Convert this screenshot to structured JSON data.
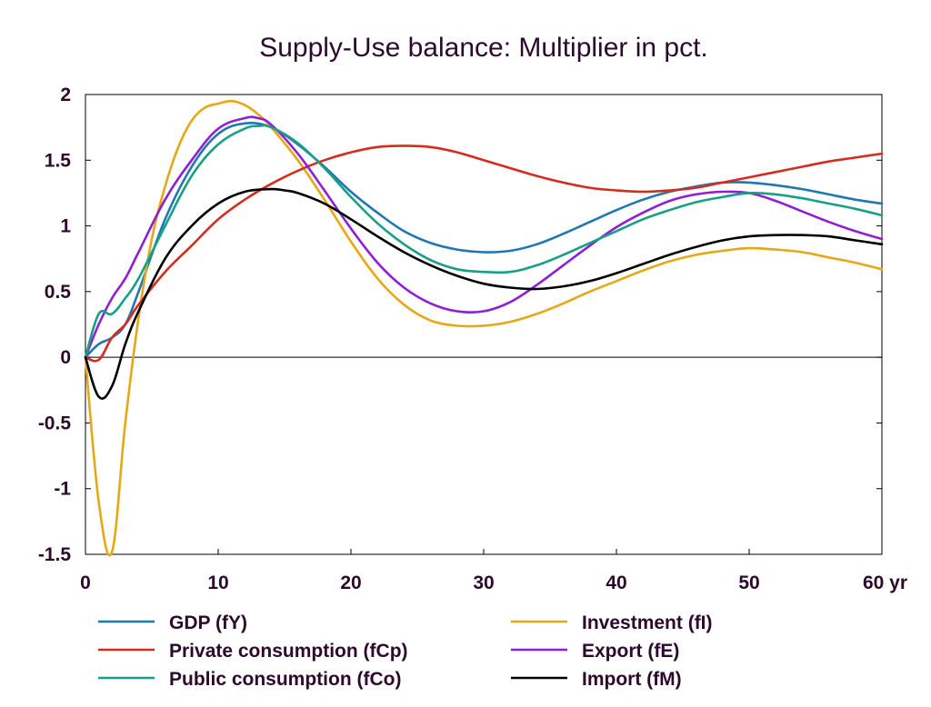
{
  "chart_data": {
    "type": "line",
    "title": "Supply-Use balance: Multiplier in pct.",
    "xlabel": "",
    "ylabel": "",
    "x_unit_label": "yr",
    "xlim": [
      0,
      60
    ],
    "ylim": [
      -1.5,
      2
    ],
    "x_ticks": [
      0,
      10,
      20,
      30,
      40,
      50,
      60
    ],
    "x_tick_labels": [
      "0",
      "10",
      "20",
      "30",
      "40",
      "50",
      "60 yr"
    ],
    "y_ticks": [
      2,
      1.5,
      1,
      0.5,
      0,
      -0.5,
      -1,
      -1.5
    ],
    "y_tick_labels": [
      "2",
      "1.5",
      "1",
      "0.5",
      "0",
      "-0.5",
      "-1",
      "-1.5"
    ],
    "grid": false,
    "zero_line": true,
    "legend_position": "bottom",
    "series": [
      {
        "name": "GDP (fY)",
        "color": "#1f77b4",
        "x": [
          0,
          1,
          2,
          3,
          4,
          6,
          8,
          10,
          12,
          14,
          16,
          18,
          20,
          22,
          24,
          26,
          28,
          30,
          32,
          34,
          36,
          38,
          40,
          42,
          44,
          46,
          48,
          50,
          52,
          54,
          56,
          58,
          60
        ],
        "y": [
          0,
          0.1,
          0.15,
          0.25,
          0.5,
          1.05,
          1.45,
          1.7,
          1.78,
          1.75,
          1.62,
          1.45,
          1.26,
          1.1,
          0.96,
          0.87,
          0.82,
          0.8,
          0.81,
          0.86,
          0.94,
          1.03,
          1.12,
          1.2,
          1.26,
          1.3,
          1.33,
          1.33,
          1.31,
          1.28,
          1.24,
          1.2,
          1.17
        ]
      },
      {
        "name": "Investment (fI)",
        "color": "#e6a817",
        "x": [
          0,
          1,
          2,
          3,
          4,
          5,
          6,
          7,
          8,
          9,
          10,
          11,
          12,
          13,
          14,
          16,
          18,
          20,
          22,
          24,
          26,
          28,
          30,
          32,
          34,
          36,
          38,
          40,
          42,
          44,
          46,
          48,
          50,
          52,
          54,
          56,
          58,
          60
        ],
        "y": [
          0,
          -1.1,
          -1.48,
          -0.5,
          0.3,
          0.9,
          1.3,
          1.6,
          1.8,
          1.9,
          1.93,
          1.95,
          1.92,
          1.85,
          1.75,
          1.5,
          1.2,
          0.88,
          0.6,
          0.4,
          0.28,
          0.24,
          0.24,
          0.27,
          0.33,
          0.41,
          0.5,
          0.58,
          0.66,
          0.73,
          0.78,
          0.81,
          0.83,
          0.82,
          0.8,
          0.76,
          0.72,
          0.67
        ]
      },
      {
        "name": "Private consumption (fCp)",
        "color": "#d62b1f",
        "x": [
          0,
          1,
          2,
          3,
          4,
          6,
          8,
          10,
          12,
          14,
          16,
          18,
          20,
          22,
          24,
          26,
          28,
          30,
          32,
          34,
          36,
          38,
          40,
          42,
          44,
          46,
          48,
          50,
          52,
          54,
          56,
          58,
          60
        ],
        "y": [
          0,
          -0.02,
          0.15,
          0.25,
          0.4,
          0.65,
          0.85,
          1.05,
          1.2,
          1.32,
          1.42,
          1.5,
          1.56,
          1.6,
          1.61,
          1.6,
          1.56,
          1.5,
          1.44,
          1.38,
          1.33,
          1.29,
          1.27,
          1.26,
          1.27,
          1.29,
          1.33,
          1.37,
          1.41,
          1.45,
          1.49,
          1.52,
          1.55
        ]
      },
      {
        "name": "Export (fE)",
        "color": "#8e1fd6",
        "x": [
          0,
          1,
          2,
          3,
          4,
          6,
          8,
          10,
          12,
          13,
          14,
          16,
          18,
          20,
          22,
          24,
          26,
          28,
          30,
          32,
          34,
          36,
          38,
          40,
          42,
          44,
          46,
          48,
          50,
          52,
          54,
          56,
          58,
          60
        ],
        "y": [
          0,
          0.25,
          0.45,
          0.6,
          0.8,
          1.2,
          1.5,
          1.74,
          1.82,
          1.82,
          1.77,
          1.55,
          1.27,
          0.98,
          0.72,
          0.53,
          0.41,
          0.35,
          0.35,
          0.42,
          0.55,
          0.7,
          0.85,
          0.99,
          1.1,
          1.19,
          1.24,
          1.26,
          1.25,
          1.19,
          1.11,
          1.03,
          0.96,
          0.9
        ]
      },
      {
        "name": "Public consumption (fCo)",
        "color": "#17a085",
        "x": [
          0,
          1,
          2,
          3,
          4,
          6,
          8,
          10,
          12,
          13,
          14,
          16,
          18,
          20,
          22,
          24,
          26,
          28,
          30,
          32,
          34,
          36,
          38,
          40,
          42,
          44,
          46,
          48,
          50,
          52,
          54,
          56,
          58,
          60
        ],
        "y": [
          0,
          0.33,
          0.33,
          0.45,
          0.6,
          1.0,
          1.38,
          1.62,
          1.74,
          1.76,
          1.75,
          1.63,
          1.44,
          1.22,
          1.02,
          0.86,
          0.74,
          0.67,
          0.65,
          0.65,
          0.7,
          0.78,
          0.87,
          0.96,
          1.05,
          1.12,
          1.18,
          1.22,
          1.25,
          1.24,
          1.21,
          1.17,
          1.13,
          1.08
        ]
      },
      {
        "name": "Import (fM)",
        "color": "#000000",
        "x": [
          0,
          1,
          2,
          3,
          4,
          6,
          8,
          10,
          12,
          14,
          15,
          16,
          18,
          20,
          22,
          24,
          26,
          28,
          30,
          32,
          34,
          36,
          38,
          40,
          42,
          44,
          46,
          48,
          50,
          52,
          54,
          56,
          58,
          60
        ],
        "y": [
          0,
          -0.3,
          -0.22,
          0.1,
          0.35,
          0.75,
          1.0,
          1.17,
          1.26,
          1.28,
          1.27,
          1.25,
          1.17,
          1.05,
          0.92,
          0.8,
          0.7,
          0.62,
          0.56,
          0.53,
          0.52,
          0.54,
          0.58,
          0.64,
          0.71,
          0.78,
          0.84,
          0.89,
          0.92,
          0.93,
          0.93,
          0.92,
          0.89,
          0.86
        ]
      }
    ]
  },
  "legend": {
    "left": [
      {
        "label": "GDP (fY)",
        "color": "#1f77b4"
      },
      {
        "label": "Private consumption (fCp)",
        "color": "#d62b1f"
      },
      {
        "label": "Public consumption (fCo)",
        "color": "#17a085"
      }
    ],
    "right": [
      {
        "label": "Investment (fI)",
        "color": "#e6a817"
      },
      {
        "label": "Export (fE)",
        "color": "#8e1fd6"
      },
      {
        "label": "Import (fM)",
        "color": "#000000"
      }
    ]
  }
}
